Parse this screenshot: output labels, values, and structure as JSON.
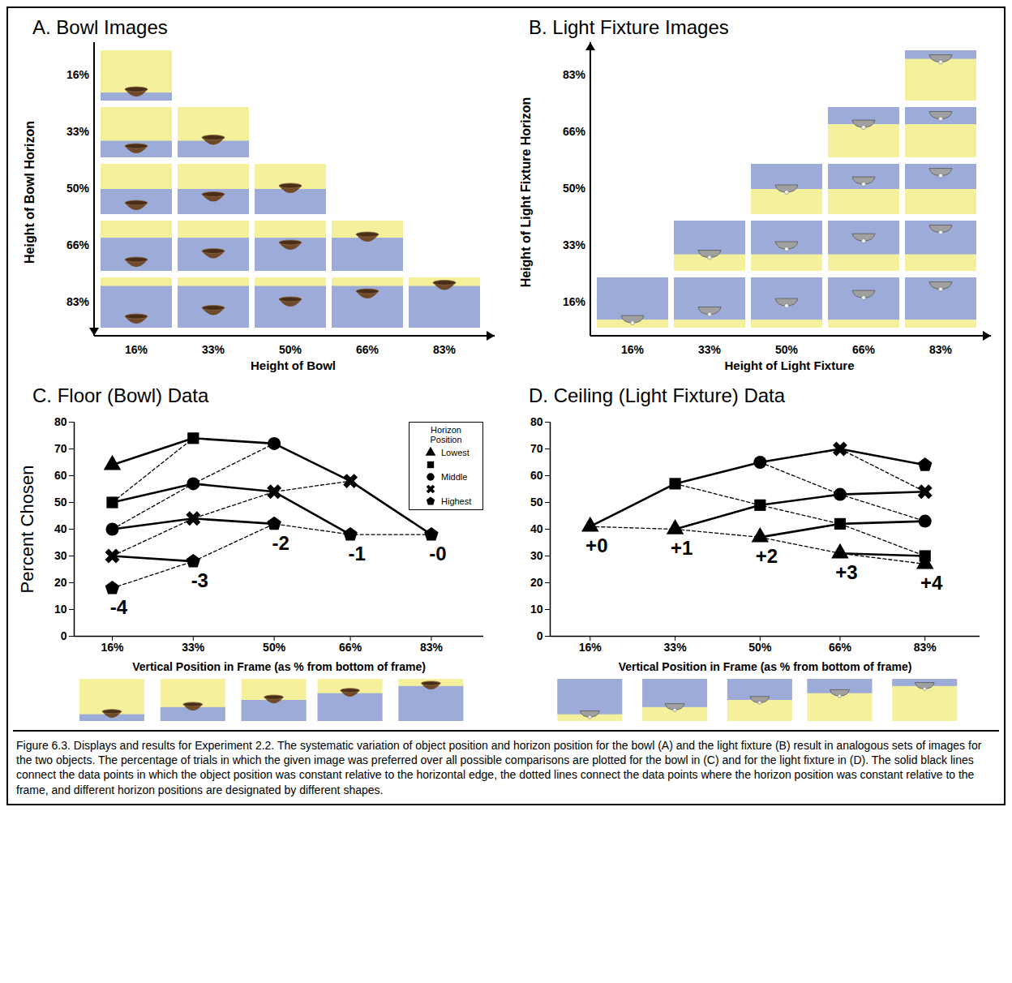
{
  "panels": [
    {
      "type": "image_grid",
      "marker": "bowl",
      "title": "A. Bowl Images",
      "x_label": "Height of Bowl",
      "y_label": "Height of Bowl Horizon",
      "x_categories": [
        {
          "value": 16,
          "label": "16%"
        },
        {
          "value": 33,
          "label": "33%"
        },
        {
          "value": 50,
          "label": "50%"
        },
        {
          "value": 66,
          "label": "66%"
        },
        {
          "value": 83,
          "label": "83%"
        }
      ],
      "y_categories": [
        {
          "value": 16,
          "label": "16%"
        },
        {
          "value": 33,
          "label": "33%"
        },
        {
          "value": 50,
          "label": "50%"
        },
        {
          "value": 66,
          "label": "66%"
        },
        {
          "value": 83,
          "label": "83%"
        }
      ],
      "images": [
        {
          "object": 16,
          "horizon": 16
        },
        {
          "object": 16,
          "horizon": 33
        },
        {
          "object": 33,
          "horizon": 33
        },
        {
          "object": 16,
          "horizon": 50
        },
        {
          "object": 33,
          "horizon": 50
        },
        {
          "object": 50,
          "horizon": 50
        },
        {
          "object": 16,
          "horizon": 66
        },
        {
          "object": 33,
          "horizon": 66
        },
        {
          "object": 50,
          "horizon": 66
        },
        {
          "object": 66,
          "horizon": 66
        },
        {
          "object": 16,
          "horizon": 83
        },
        {
          "object": 33,
          "horizon": 83
        },
        {
          "object": 50,
          "horizon": 83
        },
        {
          "object": 66,
          "horizon": 83
        },
        {
          "object": 83,
          "horizon": 83
        }
      ]
    },
    {
      "type": "image_grid",
      "marker": "light_fixture",
      "title": "B. Light Fixture Images",
      "x_label": "Height of Light Fixture",
      "y_label": "Height of Light Fixture Horizon",
      "x_categories": [
        {
          "value": 16,
          "label": "16%"
        },
        {
          "value": 33,
          "label": "33%"
        },
        {
          "value": 50,
          "label": "50%"
        },
        {
          "value": 66,
          "label": "66%"
        },
        {
          "value": 83,
          "label": "83%"
        }
      ],
      "y_categories": [
        {
          "value": 83,
          "label": "83%"
        },
        {
          "value": 66,
          "label": "66%"
        },
        {
          "value": 50,
          "label": "50%"
        },
        {
          "value": 33,
          "label": "33%"
        },
        {
          "value": 16,
          "label": "16%"
        }
      ],
      "images": [
        {
          "object": 16,
          "horizon": 16
        },
        {
          "object": 33,
          "horizon": 16
        },
        {
          "object": 50,
          "horizon": 16
        },
        {
          "object": 66,
          "horizon": 16
        },
        {
          "object": 83,
          "horizon": 16
        },
        {
          "object": 33,
          "horizon": 33
        },
        {
          "object": 50,
          "horizon": 33
        },
        {
          "object": 66,
          "horizon": 33
        },
        {
          "object": 83,
          "horizon": 33
        },
        {
          "object": 50,
          "horizon": 50
        },
        {
          "object": 66,
          "horizon": 50
        },
        {
          "object": 83,
          "horizon": 50
        },
        {
          "object": 66,
          "horizon": 66
        },
        {
          "object": 83,
          "horizon": 66
        },
        {
          "object": 83,
          "horizon": 83
        }
      ]
    }
  ],
  "chart_data": [
    {
      "type": "line",
      "marker": "bowl",
      "title": "C. Floor (Bowl) Data",
      "x_label": "Vertical Position in Frame (as % from bottom of frame)",
      "y_label": "Percent Chosen",
      "x": [
        16,
        33,
        50,
        66,
        83
      ],
      "xlim": [
        8,
        94
      ],
      "xticks": [
        {
          "value": 16,
          "label": "16%"
        },
        {
          "value": 33,
          "label": "33%"
        },
        {
          "value": 50,
          "label": "50%"
        },
        {
          "value": 66,
          "label": "66%"
        },
        {
          "value": 83,
          "label": "83%"
        }
      ],
      "ylim": [
        0,
        80
      ],
      "yticks": [
        0,
        10,
        20,
        30,
        40,
        50,
        60,
        70,
        80
      ],
      "legend": "top-right",
      "legend_title": "Horizon Position",
      "series": [
        {
          "name": "Lowest",
          "marker": "triangle",
          "line_style": "dotted",
          "color": "#000000",
          "values": [
            64,
            null,
            null,
            null,
            null
          ]
        },
        {
          "name": null,
          "marker": "square",
          "line_style": "dotted",
          "color": "#000000",
          "values": [
            50,
            74,
            null,
            null,
            null
          ]
        },
        {
          "name": "Middle",
          "marker": "circle",
          "line_style": "dotted",
          "color": "#000000",
          "values": [
            40,
            57,
            72,
            null,
            null
          ]
        },
        {
          "name": null,
          "marker": "x",
          "line_style": "dotted",
          "color": "#000000",
          "values": [
            30,
            44,
            54,
            58,
            null
          ]
        },
        {
          "name": "Highest",
          "marker": "pentagon",
          "line_style": "dotted",
          "color": "#000000",
          "values": [
            18,
            28,
            42,
            38,
            38
          ]
        }
      ],
      "annotations": [
        {
          "text": "-4",
          "x": 16,
          "series": 4
        },
        {
          "text": "-3",
          "x": 33,
          "series": 4
        },
        {
          "text": "-2",
          "x": 50,
          "series": 4
        },
        {
          "text": "-1",
          "x": 66,
          "series": 4
        },
        {
          "text": "-0",
          "x": 83,
          "series": 4
        }
      ]
    },
    {
      "type": "line",
      "marker": "light_fixture",
      "title": "D. Ceiling (Light Fixture) Data",
      "x_label": "Vertical Position in Frame (as % from bottom of frame)",
      "x": [
        16,
        33,
        50,
        66,
        83
      ],
      "xlim": [
        8,
        94
      ],
      "xticks": [
        {
          "value": 16,
          "label": "16%"
        },
        {
          "value": 33,
          "label": "33%"
        },
        {
          "value": 50,
          "label": "50%"
        },
        {
          "value": 66,
          "label": "66%"
        },
        {
          "value": 83,
          "label": "83%"
        }
      ],
      "ylim": [
        0,
        80
      ],
      "yticks": [
        0,
        10,
        20,
        30,
        40,
        50,
        60,
        70,
        80
      ],
      "series": [
        {
          "marker": "triangle",
          "line_style": "dotted",
          "color": "#000000",
          "values": [
            41,
            40,
            37,
            31,
            27
          ]
        },
        {
          "marker": "square",
          "line_style": "dotted",
          "color": "#000000",
          "values": [
            null,
            57,
            49,
            42,
            30
          ]
        },
        {
          "marker": "circle",
          "line_style": "dotted",
          "color": "#000000",
          "values": [
            null,
            null,
            65,
            53,
            43
          ]
        },
        {
          "marker": "x",
          "line_style": "dotted",
          "color": "#000000",
          "values": [
            null,
            null,
            null,
            70,
            54
          ]
        },
        {
          "marker": "pentagon",
          "line_style": "dotted",
          "color": "#000000",
          "values": [
            null,
            null,
            null,
            null,
            64
          ]
        }
      ],
      "annotations": [
        {
          "text": "+0",
          "x": 16,
          "series": 0
        },
        {
          "text": "+1",
          "x": 33,
          "series": 0
        },
        {
          "text": "+2",
          "x": 50,
          "series": 0
        },
        {
          "text": "+3",
          "x": 66,
          "series": 0
        },
        {
          "text": "+4",
          "x": 83,
          "series": 0
        }
      ]
    }
  ],
  "caption": "Figure 6.3. Displays and results for Experiment 2.2. The systematic variation of object position and horizon position for the bowl (A) and the light fixture (B) result in analogous sets of images for the two objects. The percentage of trials in which the given image was preferred over all possible comparisons are plotted for the bowl in (C) and for the light fixture in (D). The solid black lines connect the data points in which the object position was constant relative to the horizontal edge, the dotted lines connect the data points where the horizon position was constant relative to the frame, and different horizon positions are designated by different shapes."
}
